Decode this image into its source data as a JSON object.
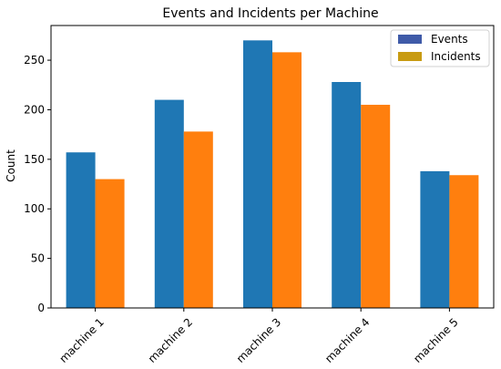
{
  "chart_data": {
    "type": "bar",
    "title": "Events and Incidents per Machine",
    "xlabel": "",
    "ylabel": "Count",
    "categories": [
      "machine 1",
      "machine 2",
      "machine 3",
      "machine 4",
      "machine 5"
    ],
    "series": [
      {
        "name": "Events",
        "values": [
          157,
          210,
          270,
          228,
          138
        ],
        "color": "#1f77b4"
      },
      {
        "name": "Incidents",
        "values": [
          130,
          178,
          258,
          205,
          134
        ],
        "color": "#ff7f0e"
      }
    ],
    "ylim": [
      0,
      285
    ],
    "yticks": [
      0,
      50,
      100,
      150,
      200,
      250
    ],
    "legend_position": "top-right",
    "legend_swatch_colors": [
      "#3f5aa8",
      "#c89b12"
    ],
    "grid": false
  }
}
